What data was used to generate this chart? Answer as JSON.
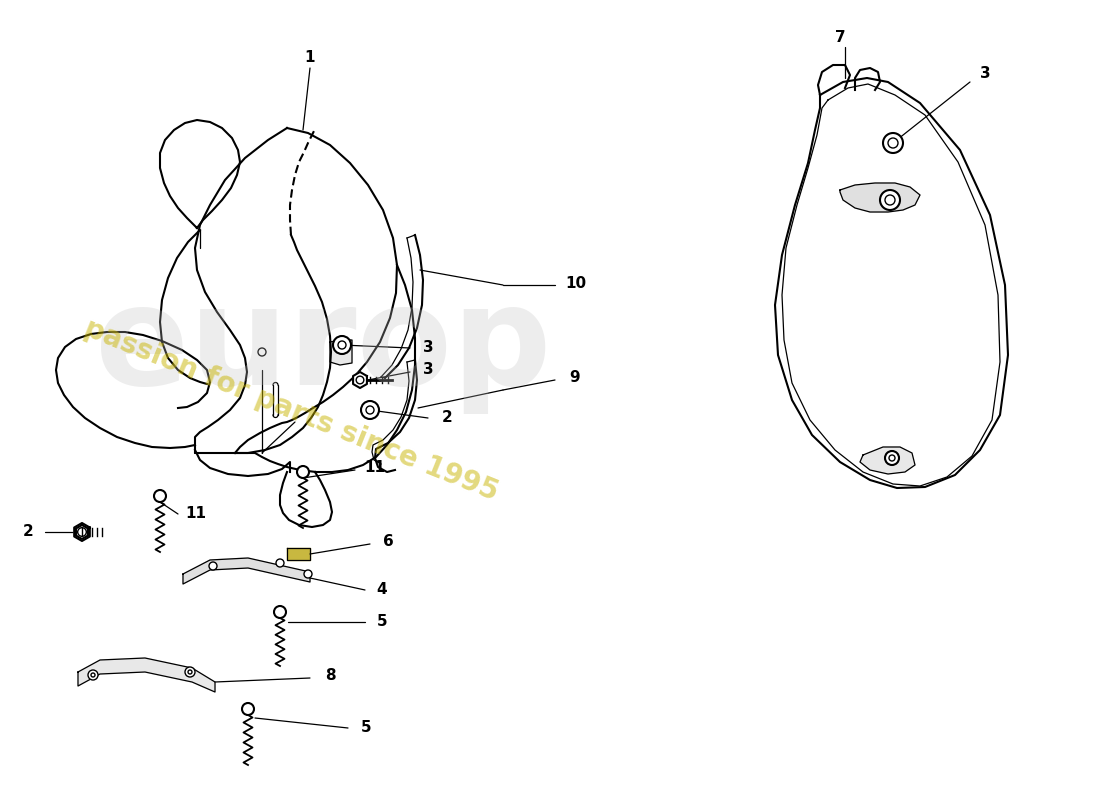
{
  "bg_color": "#ffffff",
  "lc": "#000000",
  "figsize": [
    11.0,
    8.0
  ],
  "dpi": 100,
  "wm_gray": "#c0c0c0",
  "wm_yellow": "#c8b400",
  "wm_gray2": "#d8d8d8"
}
